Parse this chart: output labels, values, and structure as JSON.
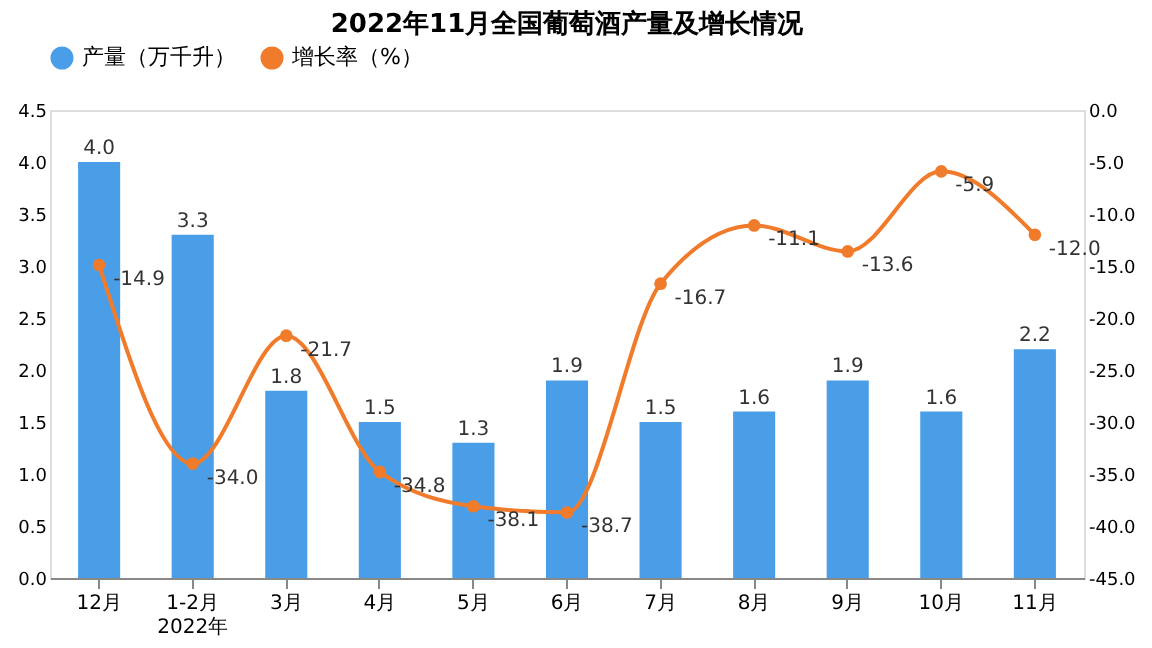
{
  "chart_data": {
    "type": "bar",
    "title": "2022年11月全国葡萄酒产量及增长情况",
    "categories": [
      "12月",
      "1-2月\n2022年",
      "3月",
      "4月",
      "5月",
      "6月",
      "7月",
      "8月",
      "9月",
      "10月",
      "11月"
    ],
    "series": [
      {
        "name": "产量（万千升）",
        "color": "#4a9ee8",
        "values": [
          4.0,
          3.3,
          1.8,
          1.5,
          1.3,
          1.9,
          1.5,
          1.6,
          1.9,
          1.6,
          2.2
        ],
        "value_labels": [
          "4.0",
          "3.3",
          "1.8",
          "1.5",
          "1.3",
          "1.9",
          "1.5",
          "1.6",
          "1.9",
          "1.6",
          "2.2"
        ]
      },
      {
        "name": "增长率（%）",
        "type": "line",
        "axis": "y2",
        "color": "#f07b2b",
        "values": [
          -14.9,
          -34.0,
          -21.7,
          -34.8,
          -38.1,
          -38.7,
          -16.7,
          -11.1,
          -13.6,
          -5.9,
          -12.0
        ],
        "value_labels": [
          "-14.9",
          "-34.0",
          "-21.7",
          "-34.8",
          "-38.1",
          "-38.7",
          "-16.7",
          "-11.1",
          "-13.6",
          "-5.9",
          "-12.0"
        ]
      }
    ],
    "ylim": [
      0,
      4.5
    ],
    "yticks": [
      {
        "value": 0,
        "label": "0.0"
      },
      {
        "value": 0.5,
        "label": "0.5"
      },
      {
        "value": 1,
        "label": "1.0"
      },
      {
        "value": 1.5,
        "label": "1.5"
      },
      {
        "value": 2,
        "label": "2.0"
      },
      {
        "value": 2.5,
        "label": "2.5"
      },
      {
        "value": 3,
        "label": "3.0"
      },
      {
        "value": 3.5,
        "label": "3.5"
      },
      {
        "value": 4,
        "label": "4.0"
      },
      {
        "value": 4.5,
        "label": "4.5"
      }
    ],
    "y2lim": [
      -45,
      0
    ],
    "y2ticks": [
      {
        "value": -45,
        "label": "-45.0"
      },
      {
        "value": -40,
        "label": "-40.0"
      },
      {
        "value": -35,
        "label": "-35.0"
      },
      {
        "value": -30,
        "label": "-30.0"
      },
      {
        "value": -25,
        "label": "-25.0"
      },
      {
        "value": -20,
        "label": "-20.0"
      },
      {
        "value": -15,
        "label": "-15.0"
      },
      {
        "value": -10,
        "label": "-10.0"
      },
      {
        "value": -5,
        "label": "-5.0"
      },
      {
        "value": 0,
        "label": "0.0"
      }
    ],
    "legend": "top",
    "grid": false,
    "marker": "circle",
    "line_style": "solid"
  }
}
